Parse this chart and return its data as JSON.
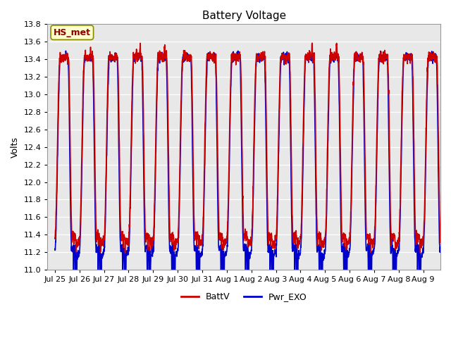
{
  "title": "Battery Voltage",
  "ylabel": "Volts",
  "ylim": [
    11.0,
    13.8
  ],
  "yticks": [
    11.0,
    11.2,
    11.4,
    11.6,
    11.8,
    12.0,
    12.2,
    12.4,
    12.6,
    12.8,
    13.0,
    13.2,
    13.4,
    13.6,
    13.8
  ],
  "x_tick_labels": [
    "Jul 25",
    "Jul 26",
    "Jul 27",
    "Jul 28",
    "Jul 29",
    "Jul 30",
    "Jul 31",
    "Aug 1",
    "Aug 2",
    "Aug 3",
    "Aug 4",
    "Aug 5",
    "Aug 6",
    "Aug 7",
    "Aug 8",
    "Aug 9"
  ],
  "batt_color": "#cc0000",
  "exo_color": "#0000cc",
  "batt_linewidth": 1.2,
  "exo_linewidth": 1.2,
  "fig_bg_color": "#ffffff",
  "plot_bg_color": "#e8e8e8",
  "annotation_text": "HS_met",
  "annotation_bg": "#ffffcc",
  "annotation_border": "#888800",
  "legend_labels": [
    "BattV",
    "Pwr_EXO"
  ],
  "title_fontsize": 11,
  "axis_label_fontsize": 9,
  "tick_fontsize": 8
}
